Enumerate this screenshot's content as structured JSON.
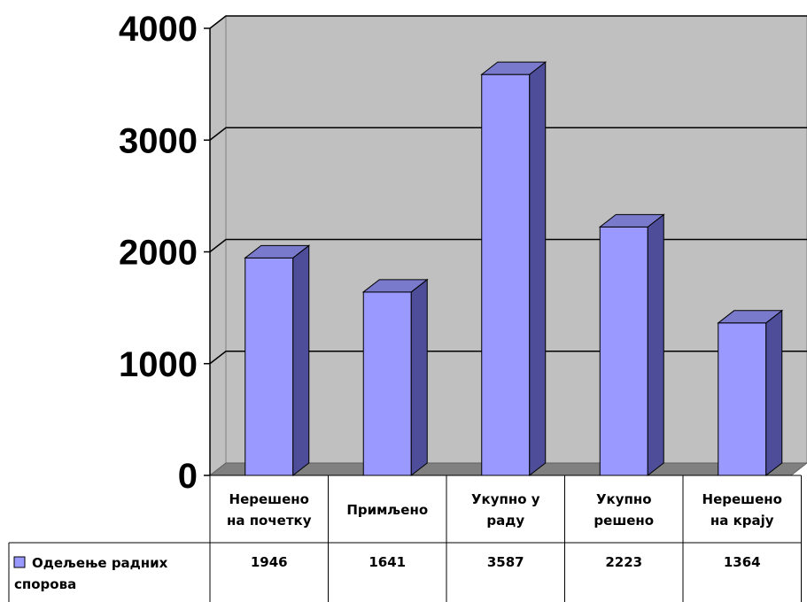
{
  "chart_data": {
    "type": "bar",
    "categories": [
      [
        "Нерешено",
        "на почетку"
      ],
      [
        "Примљено"
      ],
      [
        "Укупно у",
        "раду"
      ],
      [
        "Укупно",
        "решено"
      ],
      [
        "Нерешено",
        "на крају"
      ]
    ],
    "series": [
      {
        "name": [
          "Одељење радних",
          "спорова"
        ],
        "values": [
          1946,
          1641,
          3587,
          2223,
          1364
        ],
        "value_labels": [
          "1946",
          "1641",
          "3587",
          "2223",
          "1364"
        ],
        "color": "#9999ff"
      }
    ],
    "y_ticks": [
      "0",
      "1000",
      "2000",
      "3000",
      "4000"
    ],
    "ylim": [
      0,
      4000
    ],
    "grid": true,
    "legend": "data-table",
    "colors": {
      "wall": "#c0c0c0",
      "floor": "#808080",
      "bar_front": "#9999ff",
      "bar_side": "#4d4d99",
      "bar_top": "#7a7acc"
    }
  }
}
